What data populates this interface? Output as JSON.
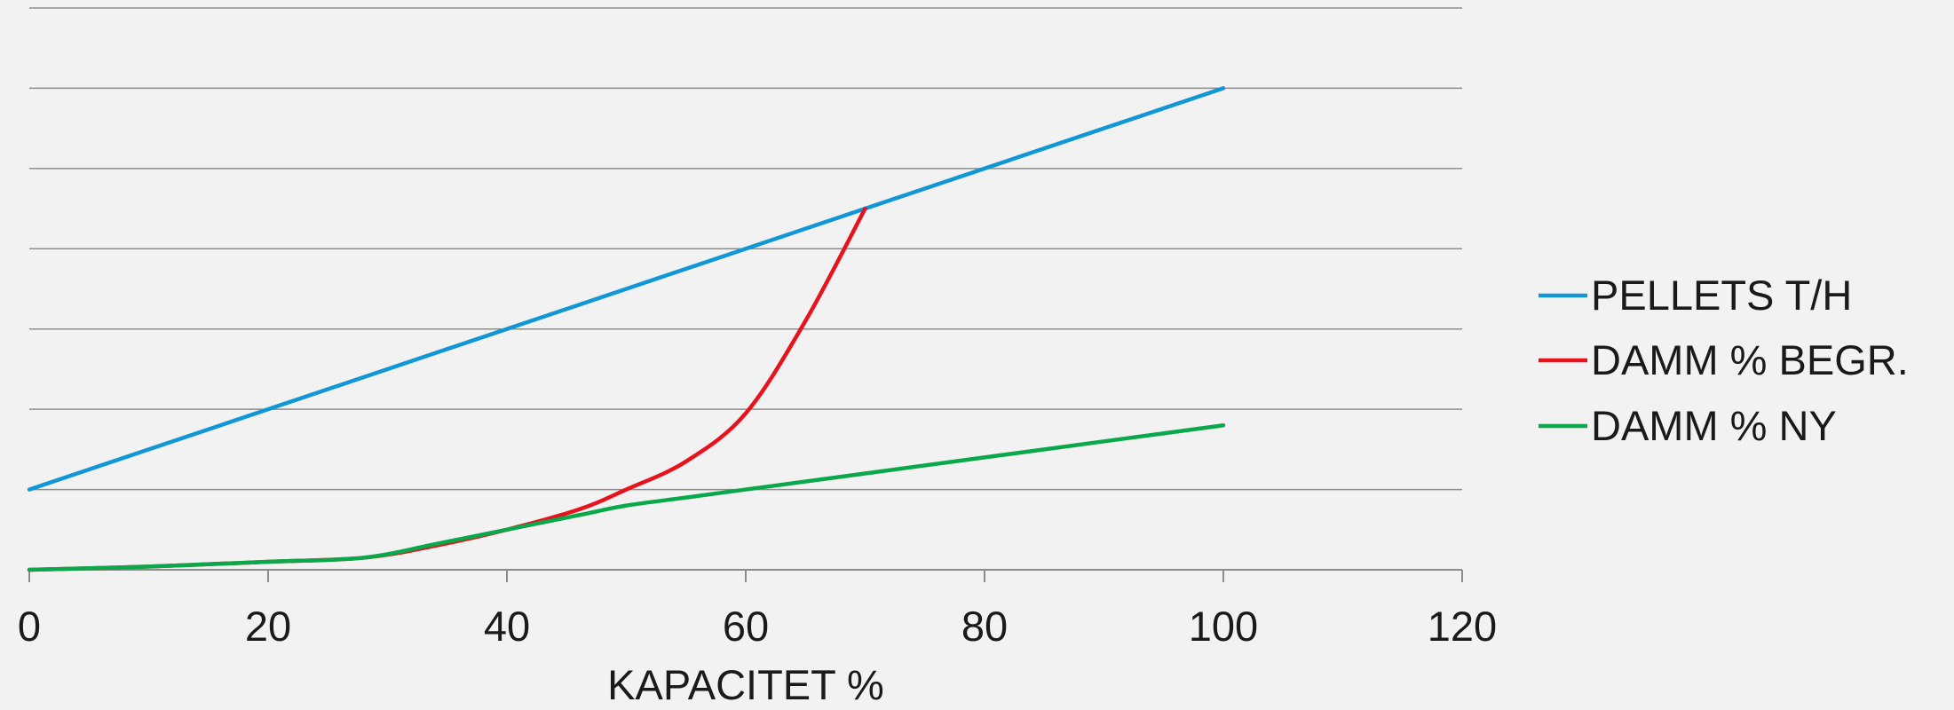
{
  "chart_data": {
    "type": "line",
    "title": "",
    "xlabel": "KAPACITET %",
    "ylabel": "",
    "xlim": [
      0,
      120
    ],
    "ylim": [
      0,
      7
    ],
    "x_ticks": [
      0,
      20,
      40,
      60,
      80,
      100,
      120
    ],
    "x_tick_labels": [
      "0",
      "20",
      "40",
      "60",
      "80",
      "100",
      "120"
    ],
    "y_gridlines": [
      1,
      2,
      3,
      4,
      5,
      6,
      7
    ],
    "y_tick_labels_visible": false,
    "grid": "horizontal",
    "legend_position": "right",
    "colors": {
      "background": "#f2f2f2",
      "gridline": "#8c8c8c",
      "axis": "#8c8c8c"
    },
    "series": [
      {
        "name": "PELLETS T/H",
        "color": "#1297d6",
        "smooth": false,
        "x": [
          0,
          100
        ],
        "y": [
          1,
          6
        ]
      },
      {
        "name": "DAMM % BEGR.",
        "color": "#e8121c",
        "smooth": true,
        "x": [
          0,
          10,
          20,
          28,
          34,
          40,
          46,
          50,
          55,
          60,
          65,
          70
        ],
        "y": [
          0,
          0.04,
          0.1,
          0.15,
          0.3,
          0.5,
          0.75,
          1.0,
          1.35,
          1.95,
          3.1,
          4.5
        ]
      },
      {
        "name": "DAMM % NY",
        "color": "#0aa84a",
        "smooth": true,
        "x": [
          0,
          10,
          20,
          28,
          34,
          40,
          46,
          50,
          55,
          60,
          70,
          80,
          90,
          100
        ],
        "y": [
          0,
          0.04,
          0.1,
          0.15,
          0.32,
          0.5,
          0.68,
          0.8,
          0.9,
          1.0,
          1.2,
          1.4,
          1.6,
          1.8
        ]
      }
    ]
  }
}
